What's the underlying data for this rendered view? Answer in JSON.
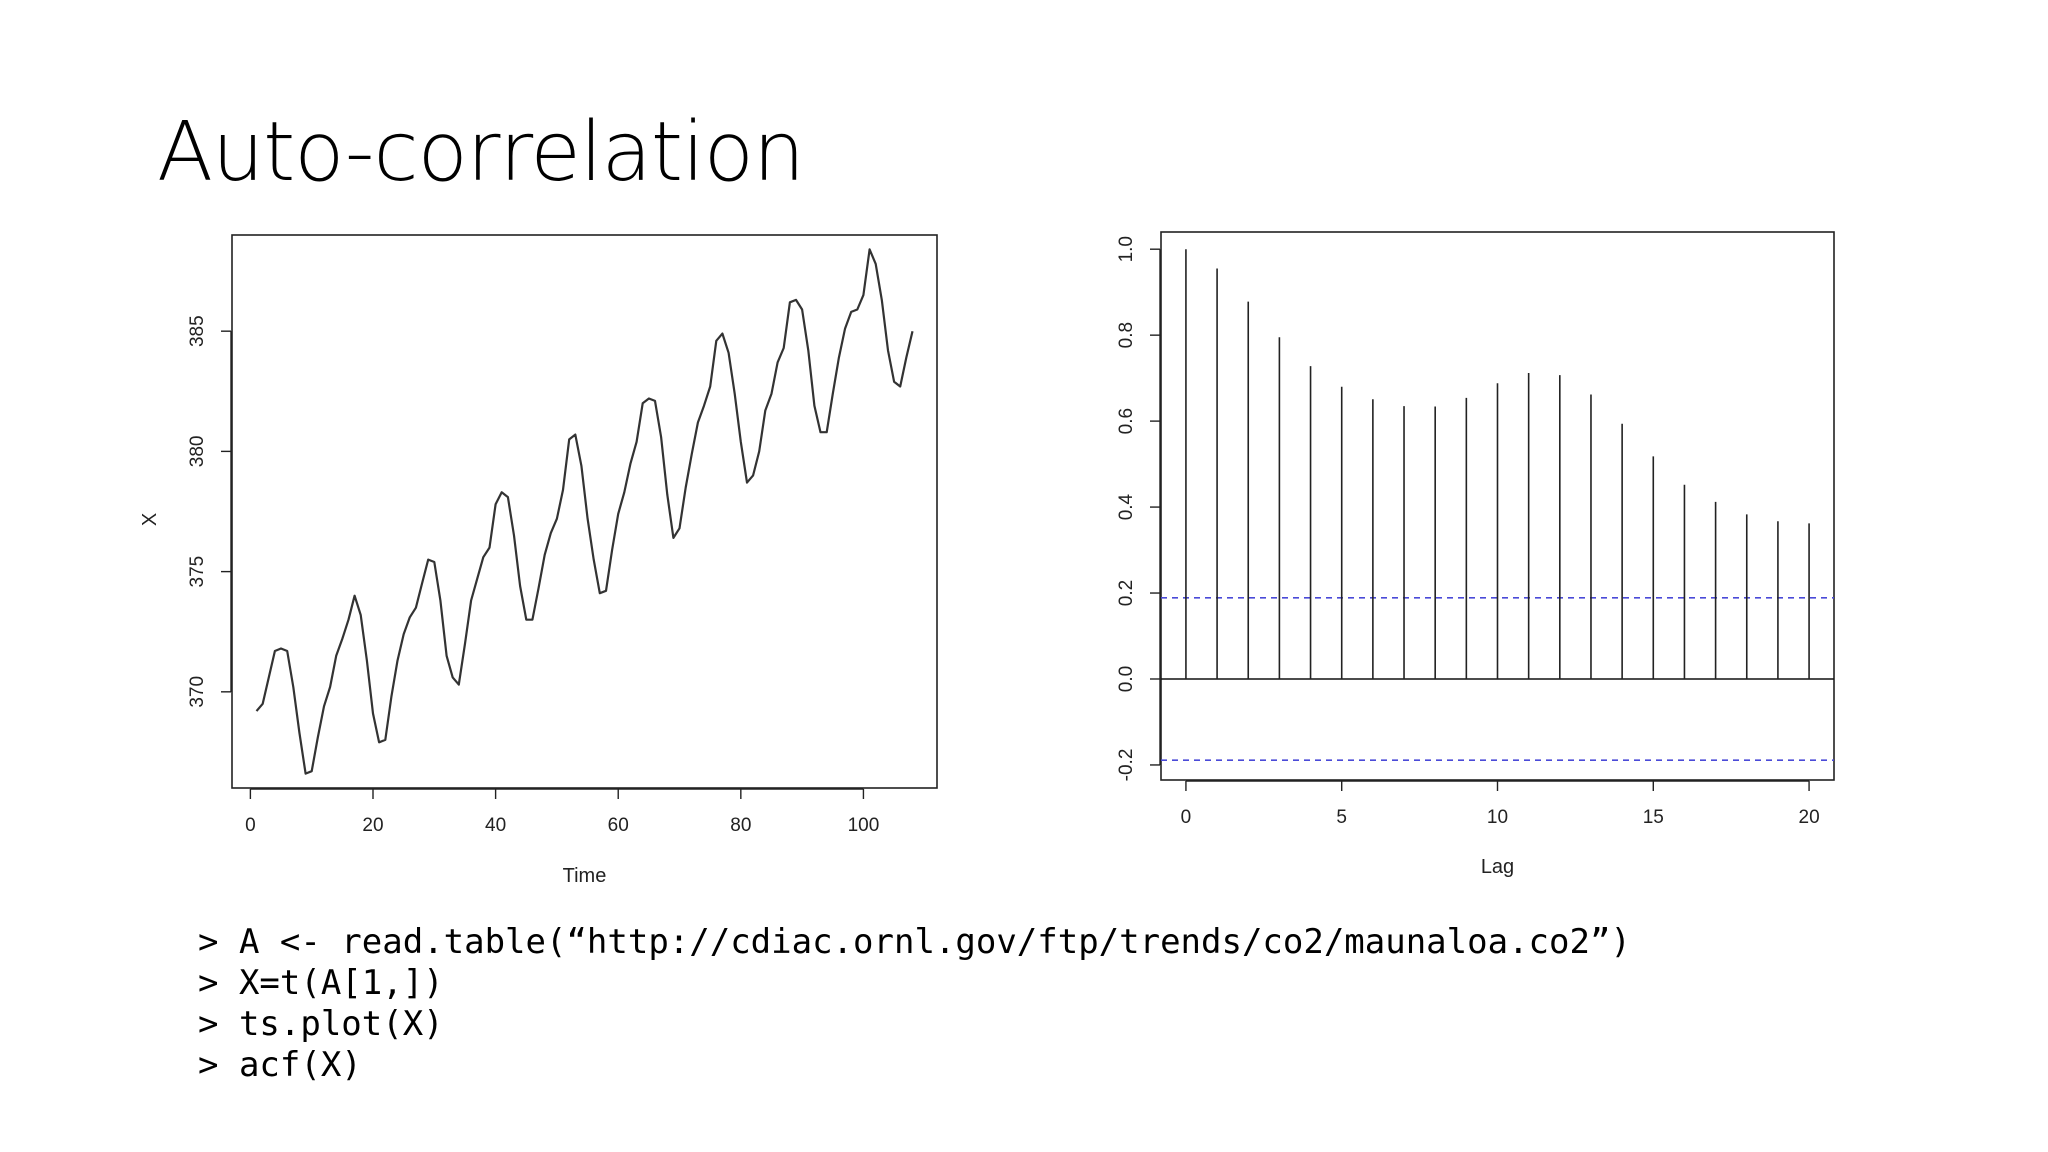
{
  "slide": {
    "title": "Auto-correlation"
  },
  "code": {
    "lines": [
      "> A <- read.table(“http://cdiac.ornl.gov/ftp/trends/co2/maunaloa.co2”)",
      "> X=t(A[1,])",
      "> ts.plot(X)",
      "> acf(X)"
    ]
  },
  "colors": {
    "line": "#333333",
    "confidence_band": "#4a4ad8"
  },
  "chart_data": [
    {
      "type": "line",
      "xlabel": "Time",
      "ylabel": "X",
      "xlim": [
        -3,
        112
      ],
      "ylim": [
        366,
        389
      ],
      "x_ticks": [
        0,
        20,
        40,
        60,
        80,
        100
      ],
      "y_ticks": [
        370,
        375,
        380,
        385
      ],
      "grid": false,
      "series": [
        {
          "x": [
            1,
            2,
            3,
            4,
            5,
            6,
            7,
            8,
            9,
            10,
            11,
            12,
            13,
            14,
            15,
            16,
            17,
            18,
            19,
            20,
            21,
            22,
            23,
            24,
            25,
            26,
            27,
            28,
            29,
            30,
            31,
            32,
            33,
            34,
            35,
            36,
            37,
            38,
            39,
            40,
            41,
            42,
            43,
            44,
            45,
            46,
            47,
            48,
            49,
            50,
            51,
            52,
            53,
            54,
            55,
            56,
            57,
            58,
            59,
            60,
            61,
            62,
            63,
            64,
            65,
            66,
            67,
            68,
            69,
            70,
            71,
            72,
            73,
            74,
            75,
            76,
            77,
            78,
            79,
            80,
            81,
            82,
            83,
            84,
            85,
            86,
            87,
            88,
            89,
            90,
            91,
            92,
            93,
            94,
            95,
            96,
            97,
            98,
            99,
            100,
            101,
            102,
            103,
            104,
            105,
            106,
            107,
            108
          ],
          "y": [
            369.2,
            369.5,
            370.6,
            371.7,
            371.8,
            371.7,
            370.2,
            368.3,
            366.6,
            366.7,
            368.1,
            369.4,
            370.2,
            371.5,
            372.2,
            373.0,
            374.0,
            373.2,
            371.3,
            369.1,
            367.9,
            368.0,
            369.8,
            371.3,
            372.4,
            373.1,
            373.5,
            374.5,
            375.5,
            375.4,
            373.8,
            371.5,
            370.6,
            370.3,
            372.0,
            373.8,
            374.7,
            375.6,
            376.0,
            377.8,
            378.3,
            378.1,
            376.5,
            374.4,
            373.0,
            373.0,
            374.3,
            375.7,
            376.6,
            377.2,
            378.4,
            380.5,
            380.7,
            379.4,
            377.2,
            375.5,
            374.1,
            374.2,
            375.9,
            377.4,
            378.3,
            379.5,
            380.4,
            382.0,
            382.2,
            382.1,
            380.6,
            378.2,
            376.4,
            376.8,
            378.5,
            379.9,
            381.2,
            381.9,
            382.7,
            384.6,
            384.9,
            384.1,
            382.4,
            380.4,
            378.7,
            379.0,
            380.0,
            381.7,
            382.4,
            383.7,
            384.3,
            386.2,
            386.3,
            385.9,
            384.2,
            381.9,
            380.8,
            380.8,
            382.4,
            383.9,
            385.1,
            385.8,
            385.9,
            386.5,
            388.4,
            387.8,
            386.3,
            384.2,
            382.9,
            382.7,
            383.9,
            385.0
          ]
        }
      ]
    },
    {
      "type": "bar",
      "xlabel": "Lag",
      "ylabel": "",
      "xlim": [
        -0.8,
        20.8
      ],
      "ylim": [
        -0.235,
        1.04
      ],
      "x_ticks": [
        0,
        5,
        10,
        15,
        20
      ],
      "y_ticks": [
        -0.2,
        0.0,
        0.2,
        0.4,
        0.6,
        0.8,
        1.0
      ],
      "grid": false,
      "categories": [
        0,
        1,
        2,
        3,
        4,
        5,
        6,
        7,
        8,
        9,
        10,
        11,
        12,
        13,
        14,
        15,
        16,
        17,
        18,
        19,
        20
      ],
      "values": [
        1.0,
        0.955,
        0.878,
        0.795,
        0.728,
        0.68,
        0.651,
        0.635,
        0.634,
        0.654,
        0.688,
        0.712,
        0.707,
        0.662,
        0.594,
        0.518,
        0.452,
        0.412,
        0.383,
        0.367,
        0.362
      ],
      "confidence_bounds": [
        0.189,
        -0.189
      ]
    }
  ]
}
